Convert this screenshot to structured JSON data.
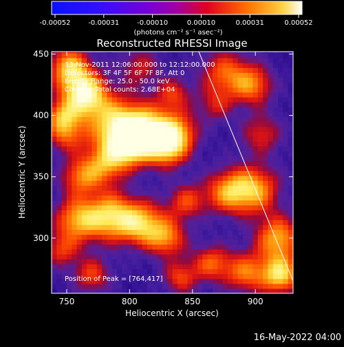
{
  "chart_data": {
    "type": "heatmap",
    "title": "Reconstructed RHESSI Image",
    "xlabel": "Heliocentric X (arcsec)",
    "ylabel": "Heliocentric Y (arcsec)",
    "xlim": [
      738,
      930
    ],
    "ylim": [
      255,
      452
    ],
    "xticks": [
      750,
      800,
      850,
      900
    ],
    "yticks": [
      300,
      350,
      400,
      450
    ],
    "colorbar": {
      "ticks": [
        "-0.00052",
        "-0.00031",
        "-0.00010",
        "0.00010",
        "0.00031",
        "0.00052"
      ],
      "range": [
        -0.00052,
        0.00052
      ],
      "unit_label": "(photons cm⁻² s⁻¹ asec⁻²)"
    },
    "info_lines": [
      "13-Nov-2011 12:06:00.000 to 12:12:00.000",
      "Detectors: 3F 4F 5F 6F 7F 8F, Att 0",
      "Energy Range: 25.0 - 50.0 keV",
      "Clean     Total counts: 2.68E+04"
    ],
    "peak_label": "Position of Peak = [764,417]",
    "peak_position": [
      764,
      417
    ],
    "limb_line": [
      [
        855,
        452
      ],
      [
        930,
        265
      ]
    ],
    "blobs": [
      {
        "x": 764,
        "y": 417,
        "amp": 1.0,
        "r": 13
      },
      {
        "x": 752,
        "y": 440,
        "amp": 0.75,
        "r": 12
      },
      {
        "x": 790,
        "y": 392,
        "amp": 0.85,
        "r": 16
      },
      {
        "x": 815,
        "y": 388,
        "amp": 0.8,
        "r": 14
      },
      {
        "x": 800,
        "y": 375,
        "amp": 0.7,
        "r": 12
      },
      {
        "x": 838,
        "y": 386,
        "amp": 0.65,
        "r": 12
      },
      {
        "x": 830,
        "y": 372,
        "amp": 0.6,
        "r": 11
      },
      {
        "x": 780,
        "y": 360,
        "amp": 0.6,
        "r": 12
      },
      {
        "x": 760,
        "y": 350,
        "amp": 0.55,
        "r": 11
      },
      {
        "x": 875,
        "y": 435,
        "amp": 0.55,
        "r": 14
      },
      {
        "x": 898,
        "y": 425,
        "amp": 0.6,
        "r": 12
      },
      {
        "x": 905,
        "y": 385,
        "amp": 0.45,
        "r": 12
      },
      {
        "x": 868,
        "y": 408,
        "amp": 0.35,
        "r": 10
      },
      {
        "x": 758,
        "y": 315,
        "amp": 0.7,
        "r": 13
      },
      {
        "x": 785,
        "y": 318,
        "amp": 0.8,
        "r": 14
      },
      {
        "x": 810,
        "y": 312,
        "amp": 0.75,
        "r": 13
      },
      {
        "x": 830,
        "y": 300,
        "amp": 0.6,
        "r": 11
      },
      {
        "x": 845,
        "y": 330,
        "amp": 0.5,
        "r": 11
      },
      {
        "x": 878,
        "y": 338,
        "amp": 0.65,
        "r": 13
      },
      {
        "x": 900,
        "y": 340,
        "amp": 0.7,
        "r": 14
      },
      {
        "x": 918,
        "y": 300,
        "amp": 0.75,
        "r": 13
      },
      {
        "x": 920,
        "y": 270,
        "amp": 0.85,
        "r": 11
      },
      {
        "x": 892,
        "y": 272,
        "amp": 0.6,
        "r": 12
      },
      {
        "x": 865,
        "y": 280,
        "amp": 0.55,
        "r": 11
      },
      {
        "x": 840,
        "y": 268,
        "amp": 0.5,
        "r": 10
      },
      {
        "x": 770,
        "y": 270,
        "amp": 0.5,
        "r": 11
      },
      {
        "x": 745,
        "y": 290,
        "amp": 0.45,
        "r": 10
      },
      {
        "x": 750,
        "y": 385,
        "amp": 0.55,
        "r": 11
      },
      {
        "x": 745,
        "y": 400,
        "amp": 0.5,
        "r": 9
      },
      {
        "x": 808,
        "y": 440,
        "amp": 0.4,
        "r": 12
      },
      {
        "x": 835,
        "y": 418,
        "amp": 0.45,
        "r": 10
      }
    ]
  },
  "footer": {
    "date": "16-May-2022 04:00"
  },
  "colors": {
    "background": "#000000",
    "foreground": "#ffffff",
    "neg_low": "#1500ff",
    "neutral": "#4a1e9e",
    "pos_mid": "#ff2b00",
    "pos_high": "#ffff80"
  }
}
